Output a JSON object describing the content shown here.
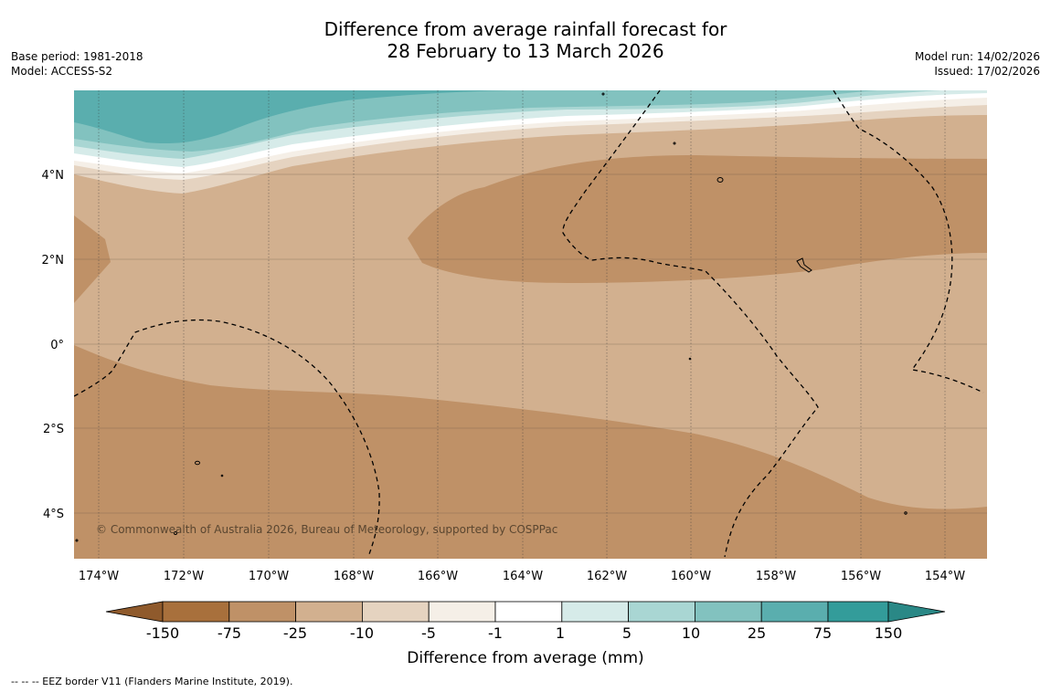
{
  "title": {
    "line1": "Difference from average rainfall forecast for",
    "line2": "28 February to 13 March 2026"
  },
  "meta_left": {
    "base_period": "Base period: 1981-2018",
    "model": "Model: ACCESS-S2"
  },
  "meta_right": {
    "model_run": "Model run: 14/02/2026",
    "issued": "Issued: 17/02/2026"
  },
  "map": {
    "lat_labels": [
      "4°N",
      "2°N",
      "0°",
      "2°S",
      "4°S"
    ],
    "lon_labels": [
      "174°W",
      "172°W",
      "170°W",
      "168°W",
      "166°W",
      "164°W",
      "162°W",
      "160°W",
      "158°W",
      "156°W",
      "154°W"
    ],
    "copyright": "© Commonwealth of Australia 2026, Bureau of Meteorology, supported by COSPPac"
  },
  "colorbar": {
    "ticks": [
      "-150",
      "-75",
      "-25",
      "-10",
      "-5",
      "-1",
      "1",
      "5",
      "10",
      "25",
      "75",
      "150"
    ],
    "colors": [
      "#a8703c",
      "#bf9167",
      "#d2b08f",
      "#e5d3c0",
      "#f5efe7",
      "#ffffff",
      "#d6ebe9",
      "#a9d6d3",
      "#82c2bf",
      "#5aaeae",
      "#339c9a"
    ],
    "under_color": "#8f5a2c",
    "over_color": "#2a8886",
    "title": "Difference from average (mm)"
  },
  "footnote": "--  --  -- EEZ border V11 (Flanders Marine Institute, 2019)."
}
